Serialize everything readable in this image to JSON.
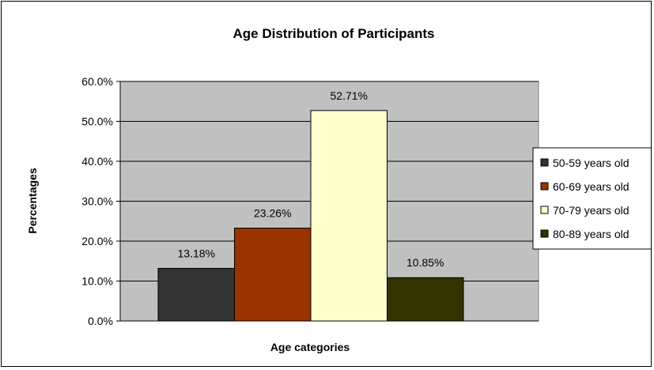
{
  "chart_data": {
    "type": "bar",
    "title": "Age Distribution of Participants",
    "xlabel": "Age categories",
    "ylabel": "Percentages",
    "ylim": [
      0,
      60
    ],
    "y_ticks": [
      "0.0%",
      "10.0%",
      "20.0%",
      "30.0%",
      "40.0%",
      "50.0%",
      "60.0%"
    ],
    "y_tick_values": [
      0,
      10,
      20,
      30,
      40,
      50,
      60
    ],
    "grid": true,
    "legend_position": "right",
    "plot_background": "#c0c0c0",
    "series": [
      {
        "name": "50-59 years old",
        "value": 13.18,
        "label": "13.18%",
        "color": "#333333"
      },
      {
        "name": "60-69 years old",
        "value": 23.26,
        "label": "23.26%",
        "color": "#993300"
      },
      {
        "name": "70-79 years old",
        "value": 52.71,
        "label": "52.71%",
        "color": "#ffffcc"
      },
      {
        "name": "80-89 years old",
        "value": 10.85,
        "label": "10.85%",
        "color": "#333300"
      }
    ]
  }
}
